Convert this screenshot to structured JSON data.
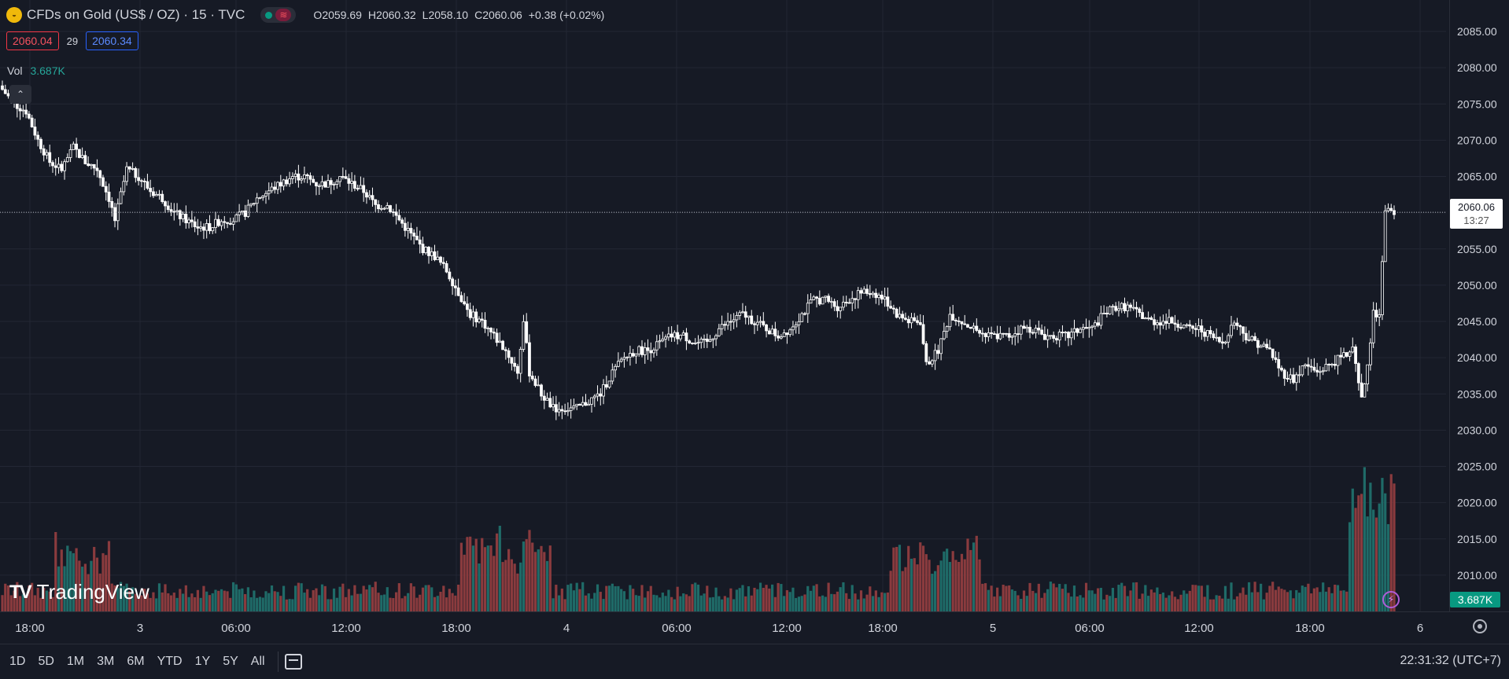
{
  "header": {
    "symbol_title": "CFDs on Gold (US$ / OZ) · 15 · TVC",
    "ohlc": [
      {
        "k": "O",
        "v": "2059.69"
      },
      {
        "k": "H",
        "v": "2060.32"
      },
      {
        "k": "L",
        "v": "2058.10"
      },
      {
        "k": "C",
        "v": "2060.06"
      }
    ],
    "change": "+0.38 (+0.02%)",
    "change_color": "#089981",
    "bid": "2060.04",
    "spread": "29",
    "ask": "2060.34"
  },
  "volume_legend": {
    "label": "Vol",
    "value": "3.687K"
  },
  "price_axis": {
    "labels": [
      "2085.00",
      "2080.00",
      "2075.00",
      "2070.00",
      "2065.00",
      "2060.00",
      "2055.00",
      "2050.00",
      "2045.00",
      "2040.00",
      "2035.00",
      "2030.00",
      "2025.00",
      "2020.00",
      "2015.00",
      "2010.00"
    ],
    "last_price": "2060.06",
    "countdown": "13:27",
    "volume_tag": "3.687K"
  },
  "time_axis": {
    "labels": [
      "18:00",
      "3",
      "06:00",
      "12:00",
      "18:00",
      "4",
      "06:00",
      "12:00",
      "18:00",
      "5",
      "06:00",
      "12:00",
      "18:00",
      "6"
    ]
  },
  "branding": {
    "name": "TradingView"
  },
  "bottom_bar": {
    "ranges": [
      "1D",
      "5D",
      "1M",
      "3M",
      "6M",
      "YTD",
      "1Y",
      "5Y",
      "All"
    ],
    "clock": "22:31:32 (UTC+7)"
  },
  "colors": {
    "up": "#26a69a",
    "down": "#ef5350",
    "candle": "#ffffff",
    "background": "#161a25",
    "grid": "#232734"
  },
  "chart_data": {
    "type": "candlestick",
    "interval": "15",
    "y_range": [
      2005,
      2087
    ],
    "close_path": [
      [
        0,
        2077
      ],
      [
        4,
        2075
      ],
      [
        8,
        2074
      ],
      [
        12,
        2070
      ],
      [
        16,
        2067
      ],
      [
        20,
        2066
      ],
      [
        24,
        2069
      ],
      [
        28,
        2067
      ],
      [
        32,
        2066
      ],
      [
        36,
        2062
      ],
      [
        38,
        2059
      ],
      [
        42,
        2066
      ],
      [
        46,
        2065
      ],
      [
        50,
        2063
      ],
      [
        54,
        2062
      ],
      [
        58,
        2060
      ],
      [
        62,
        2059
      ],
      [
        66,
        2058
      ],
      [
        70,
        2058
      ],
      [
        74,
        2059
      ],
      [
        78,
        2059
      ],
      [
        82,
        2060
      ],
      [
        86,
        2062
      ],
      [
        90,
        2063
      ],
      [
        94,
        2064
      ],
      [
        98,
        2065
      ],
      [
        102,
        2065
      ],
      [
        106,
        2064
      ],
      [
        110,
        2064
      ],
      [
        114,
        2065
      ],
      [
        118,
        2064
      ],
      [
        122,
        2063
      ],
      [
        126,
        2061
      ],
      [
        130,
        2061
      ],
      [
        134,
        2059
      ],
      [
        138,
        2057
      ],
      [
        142,
        2055
      ],
      [
        146,
        2054
      ],
      [
        150,
        2052
      ],
      [
        154,
        2049
      ],
      [
        158,
        2046
      ],
      [
        162,
        2045
      ],
      [
        166,
        2043
      ],
      [
        170,
        2041
      ],
      [
        174,
        2038
      ],
      [
        176,
        2045
      ],
      [
        178,
        2038
      ],
      [
        182,
        2035
      ],
      [
        186,
        2033
      ],
      [
        190,
        2033
      ],
      [
        194,
        2033
      ],
      [
        198,
        2034
      ],
      [
        202,
        2035
      ],
      [
        206,
        2038
      ],
      [
        210,
        2040
      ],
      [
        214,
        2041
      ],
      [
        218,
        2041
      ],
      [
        222,
        2042
      ],
      [
        226,
        2043
      ],
      [
        230,
        2043
      ],
      [
        234,
        2042
      ],
      [
        238,
        2042
      ],
      [
        242,
        2044
      ],
      [
        246,
        2045
      ],
      [
        250,
        2046
      ],
      [
        254,
        2045
      ],
      [
        258,
        2044
      ],
      [
        262,
        2043
      ],
      [
        266,
        2044
      ],
      [
        270,
        2046
      ],
      [
        274,
        2048
      ],
      [
        278,
        2048
      ],
      [
        282,
        2047
      ],
      [
        286,
        2048
      ],
      [
        290,
        2049
      ],
      [
        294,
        2049
      ],
      [
        298,
        2048
      ],
      [
        302,
        2046
      ],
      [
        306,
        2045
      ],
      [
        310,
        2045
      ],
      [
        312,
        2039
      ],
      [
        316,
        2041
      ],
      [
        320,
        2046
      ],
      [
        324,
        2045
      ],
      [
        328,
        2044
      ],
      [
        332,
        2043
      ],
      [
        336,
        2043
      ],
      [
        340,
        2043
      ],
      [
        344,
        2044
      ],
      [
        348,
        2044
      ],
      [
        352,
        2043
      ],
      [
        356,
        2043
      ],
      [
        360,
        2043
      ],
      [
        364,
        2044
      ],
      [
        368,
        2044
      ],
      [
        372,
        2046
      ],
      [
        376,
        2047
      ],
      [
        380,
        2047
      ],
      [
        384,
        2046
      ],
      [
        388,
        2045
      ],
      [
        392,
        2045
      ],
      [
        396,
        2045
      ],
      [
        400,
        2044
      ],
      [
        404,
        2044
      ],
      [
        408,
        2043
      ],
      [
        412,
        2042
      ],
      [
        416,
        2045
      ],
      [
        420,
        2043
      ],
      [
        424,
        2042
      ],
      [
        428,
        2041
      ],
      [
        432,
        2038
      ],
      [
        436,
        2037
      ],
      [
        440,
        2039
      ],
      [
        444,
        2038
      ],
      [
        448,
        2039
      ],
      [
        452,
        2040
      ],
      [
        456,
        2041
      ],
      [
        459,
        2034
      ],
      [
        461,
        2039
      ],
      [
        463,
        2046
      ],
      [
        465,
        2046
      ],
      [
        467,
        2060
      ],
      [
        469,
        2060
      ],
      [
        470,
        2060.06
      ]
    ],
    "volume_max_approx": 7000,
    "last_volume": "3.687K"
  }
}
